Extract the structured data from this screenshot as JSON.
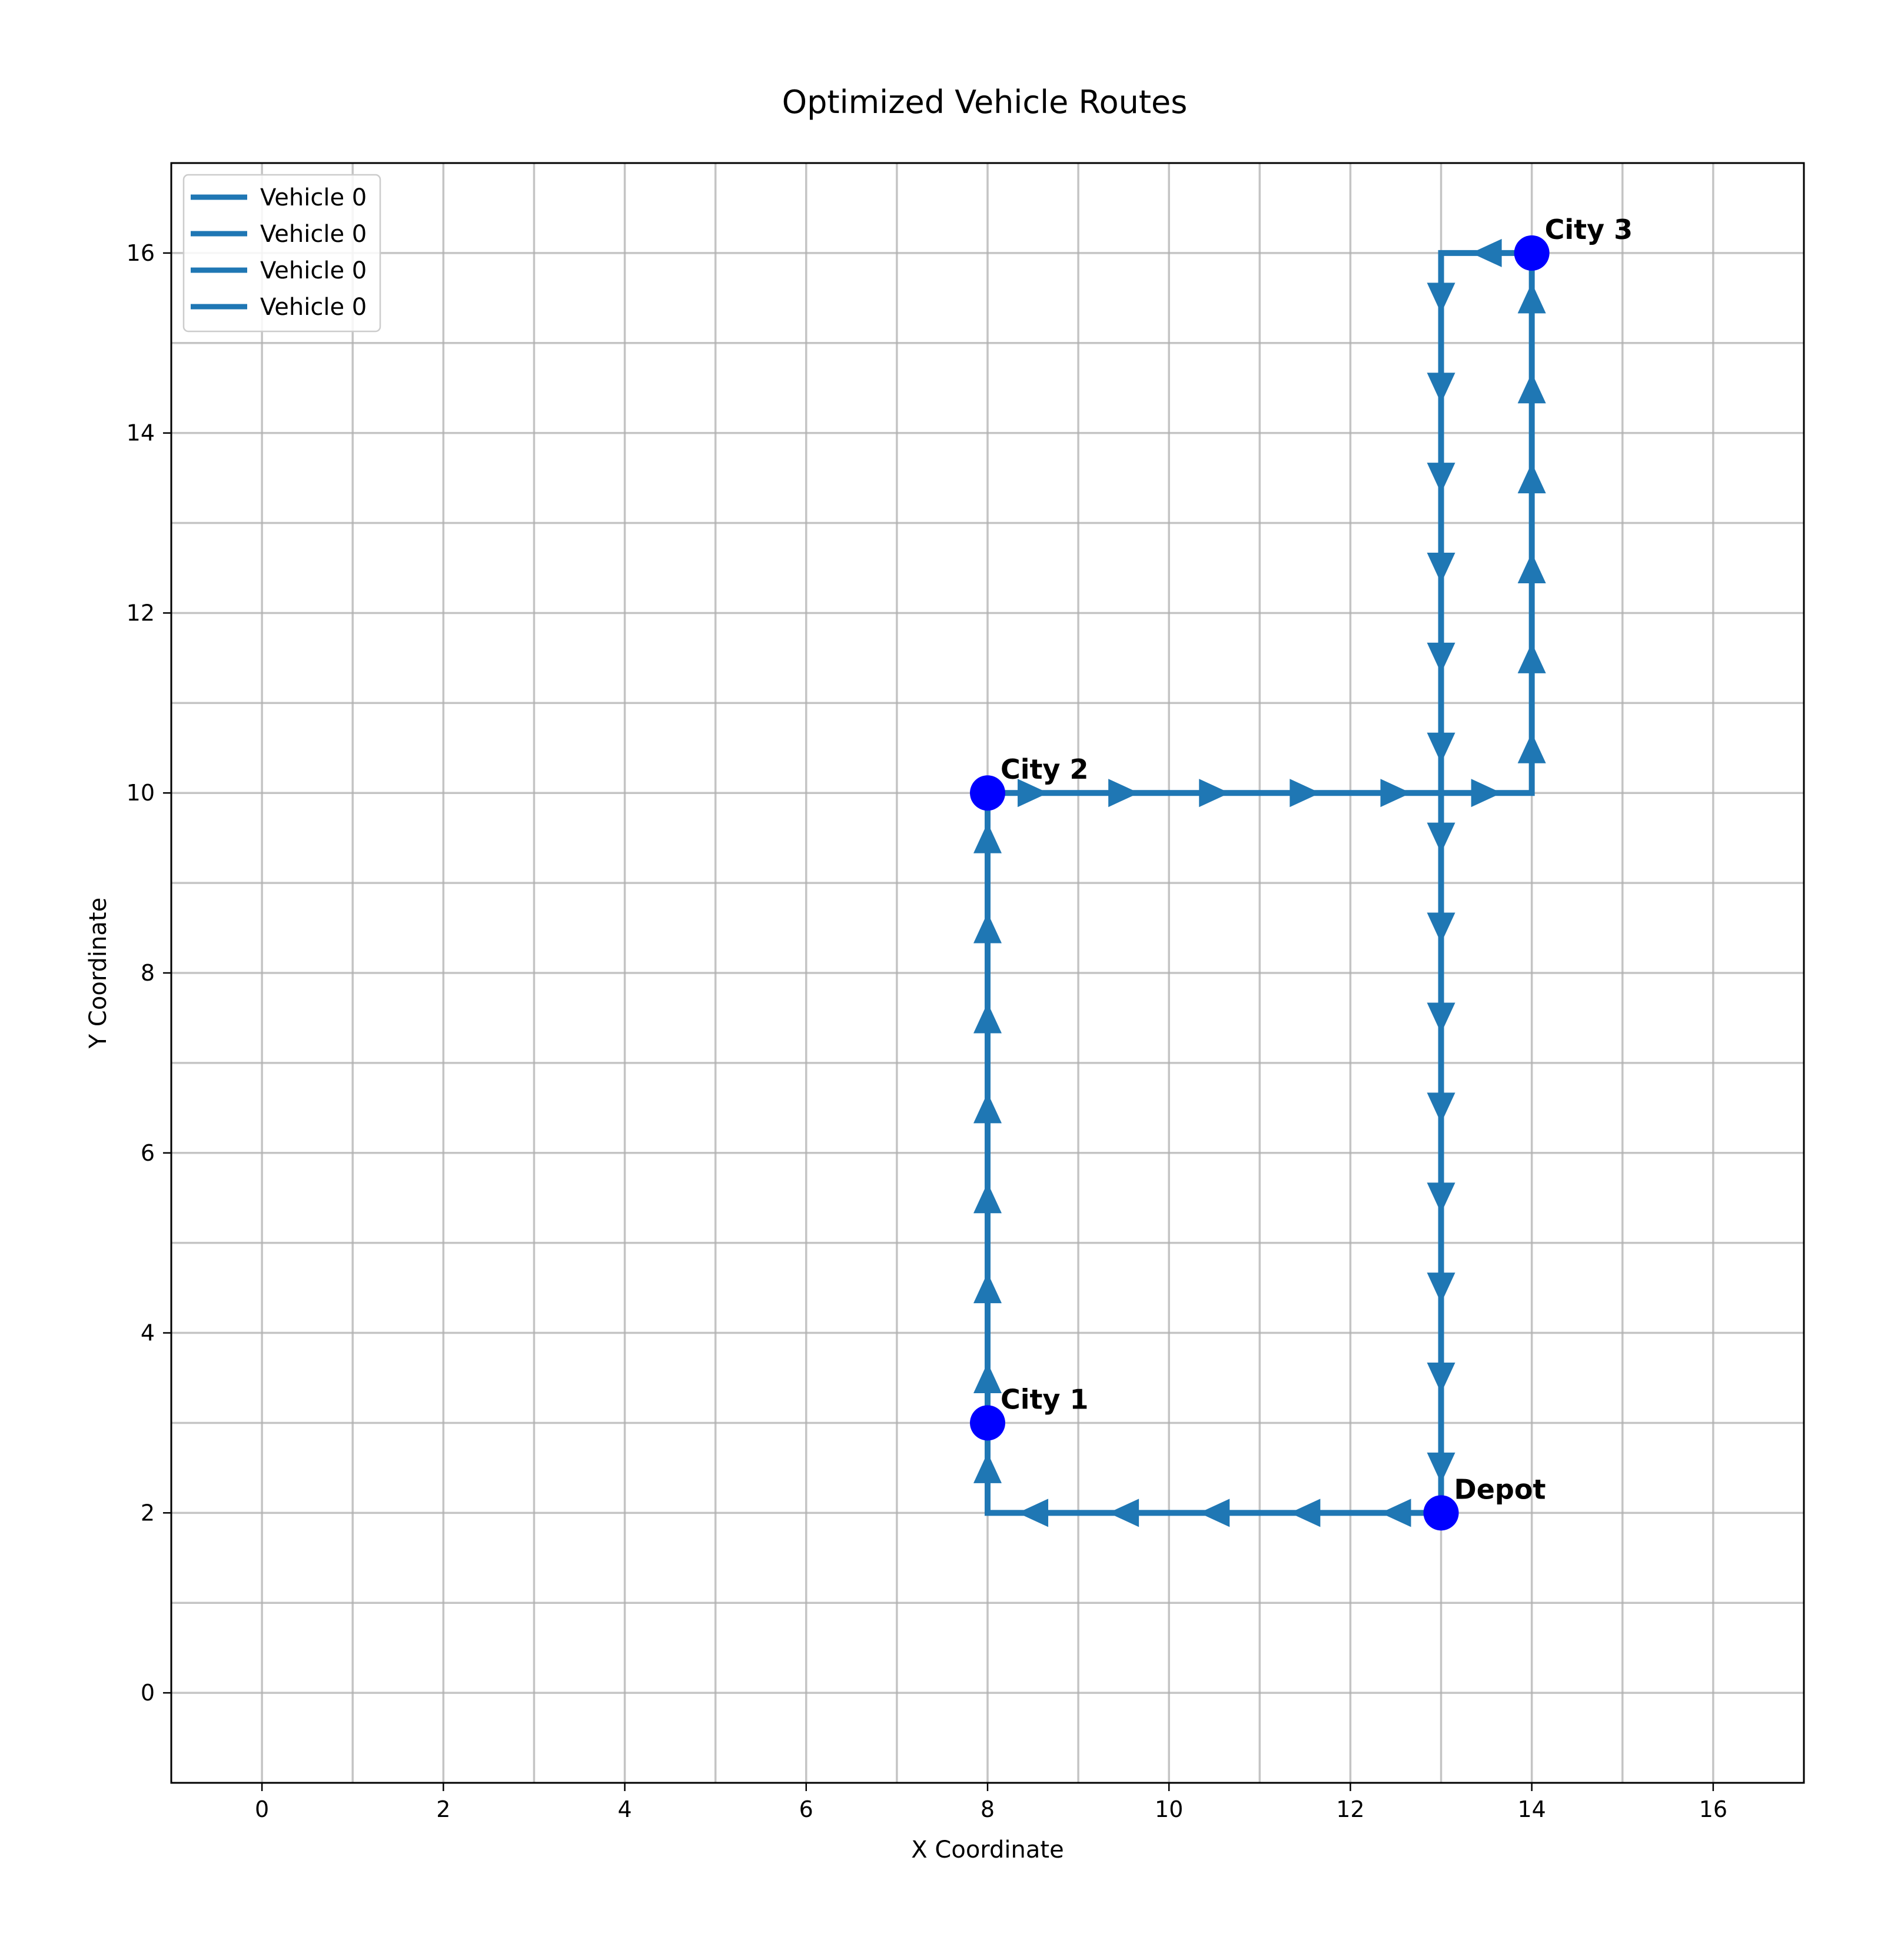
{
  "chart_data": {
    "type": "line",
    "title": "Optimized Vehicle Routes",
    "xlabel": "X Coordinate",
    "ylabel": "Y Coordinate",
    "xlim": [
      -1,
      17
    ],
    "ylim": [
      -1,
      17
    ],
    "xticks": [
      0,
      2,
      4,
      6,
      8,
      10,
      12,
      14,
      16
    ],
    "yticks": [
      0,
      2,
      4,
      6,
      8,
      10,
      12,
      14,
      16
    ],
    "grid": "on (major and minor, step 1)",
    "legend_placement": "top-left",
    "route_color": "#1f77b4",
    "node_color": "#0000ff",
    "series": [
      {
        "name": "Vehicle 0",
        "points": [
          [
            13,
            2
          ],
          [
            8,
            2
          ],
          [
            8,
            3
          ]
        ]
      },
      {
        "name": "Vehicle 0",
        "points": [
          [
            8,
            3
          ],
          [
            8,
            10
          ]
        ]
      },
      {
        "name": "Vehicle 0",
        "points": [
          [
            8,
            10
          ],
          [
            14,
            10
          ],
          [
            14,
            16
          ]
        ]
      },
      {
        "name": "Vehicle 0",
        "points": [
          [
            14,
            16
          ],
          [
            13,
            16
          ],
          [
            13,
            2
          ]
        ]
      }
    ],
    "nodes": [
      {
        "label": "Depot",
        "x": 13,
        "y": 2
      },
      {
        "label": "City 1",
        "x": 8,
        "y": 3
      },
      {
        "label": "City 2",
        "x": 8,
        "y": 10
      },
      {
        "label": "City 3",
        "x": 14,
        "y": 16
      }
    ]
  }
}
